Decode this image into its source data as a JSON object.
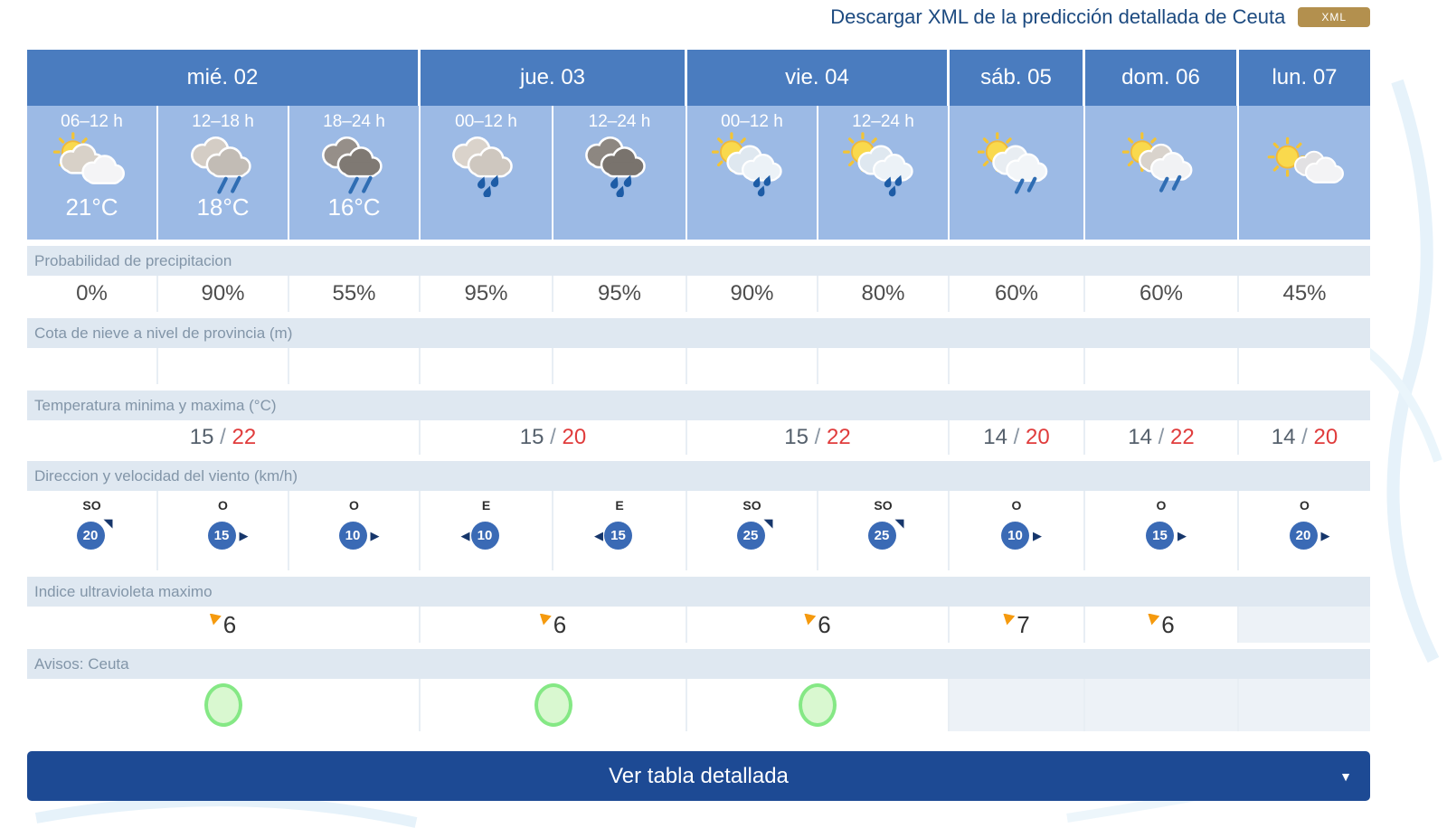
{
  "header": {
    "download_text": "Descargar XML de la predicción detallada de Ceuta",
    "xml_badge_label": "XML"
  },
  "days": [
    {
      "label": "mié. 02",
      "span": 3
    },
    {
      "label": "jue. 03",
      "span": 2
    },
    {
      "label": "vie. 04",
      "span": 2
    },
    {
      "label": "sáb. 05",
      "span": 1
    },
    {
      "label": "dom. 06",
      "span": 1
    },
    {
      "label": "lun. 07",
      "span": 1
    }
  ],
  "periods": [
    {
      "time": "06–12 h",
      "icon": "sun-cloud",
      "temp": "21°C"
    },
    {
      "time": "12–18 h",
      "icon": "cloud-rain",
      "temp": "18°C"
    },
    {
      "time": "18–24 h",
      "icon": "darkcloud-rain",
      "temp": "16°C"
    },
    {
      "time": "00–12 h",
      "icon": "cloud-raindrops",
      "temp": ""
    },
    {
      "time": "12–24 h",
      "icon": "darkcloud-raindrops",
      "temp": ""
    },
    {
      "time": "00–12 h",
      "icon": "sun-cloud-rain",
      "temp": ""
    },
    {
      "time": "12–24 h",
      "icon": "sun-cloud-rain",
      "temp": ""
    },
    {
      "time": "",
      "icon": "sun-cloud-lightrain",
      "temp": ""
    },
    {
      "time": "",
      "icon": "sun-cloud-rain2",
      "temp": ""
    },
    {
      "time": "",
      "icon": "sun-clouds",
      "temp": ""
    }
  ],
  "rows": {
    "precipitation": {
      "label": "Probabilidad de precipitacion",
      "values": [
        "0%",
        "90%",
        "55%",
        "95%",
        "95%",
        "90%",
        "80%",
        "60%",
        "60%",
        "45%"
      ]
    },
    "snow": {
      "label": "Cota de nieve a nivel de provincia (m)",
      "values": [
        "",
        "",
        "",
        "",
        "",
        "",
        "",
        "",
        "",
        ""
      ]
    },
    "temperature": {
      "label": "Temperatura minima y maxima (°C)",
      "values": [
        {
          "min": "15",
          "max": "22"
        },
        {
          "min": "15",
          "max": "20"
        },
        {
          "min": "15",
          "max": "22"
        },
        {
          "min": "14",
          "max": "20"
        },
        {
          "min": "14",
          "max": "22"
        },
        {
          "min": "14",
          "max": "20"
        }
      ]
    },
    "wind": {
      "label": "Direccion y velocidad del viento (km/h)",
      "values": [
        {
          "dir": "SO",
          "speed": "20",
          "arrow": "ne"
        },
        {
          "dir": "O",
          "speed": "15",
          "arrow": "e"
        },
        {
          "dir": "O",
          "speed": "10",
          "arrow": "e"
        },
        {
          "dir": "E",
          "speed": "10",
          "arrow": "w"
        },
        {
          "dir": "E",
          "speed": "15",
          "arrow": "w"
        },
        {
          "dir": "SO",
          "speed": "25",
          "arrow": "ne"
        },
        {
          "dir": "SO",
          "speed": "25",
          "arrow": "ne"
        },
        {
          "dir": "O",
          "speed": "10",
          "arrow": "e"
        },
        {
          "dir": "O",
          "speed": "15",
          "arrow": "e"
        },
        {
          "dir": "O",
          "speed": "20",
          "arrow": "e"
        }
      ]
    },
    "uv": {
      "label": "Indice ultravioleta maximo",
      "values": [
        "6",
        "6",
        "6",
        "7",
        "6",
        ""
      ]
    },
    "avisos": {
      "label": "Avisos: Ceuta",
      "values": [
        true,
        true,
        true,
        false,
        false,
        false
      ]
    }
  },
  "footer": {
    "button_label": "Ver tabla detallada",
    "caret": "▼"
  },
  "colors": {
    "day_header": "#4a7cbf",
    "period_header": "#9cbae5",
    "label_bar": "#dfe8f1",
    "accent_button": "#1d4a94",
    "xml_badge": "#b3904e",
    "temp_max_red": "#e03c3c",
    "wind_badge_blue": "#3a6ab5",
    "aviso_green": "#85e885",
    "uv_flag_orange": "#f59a0e"
  }
}
